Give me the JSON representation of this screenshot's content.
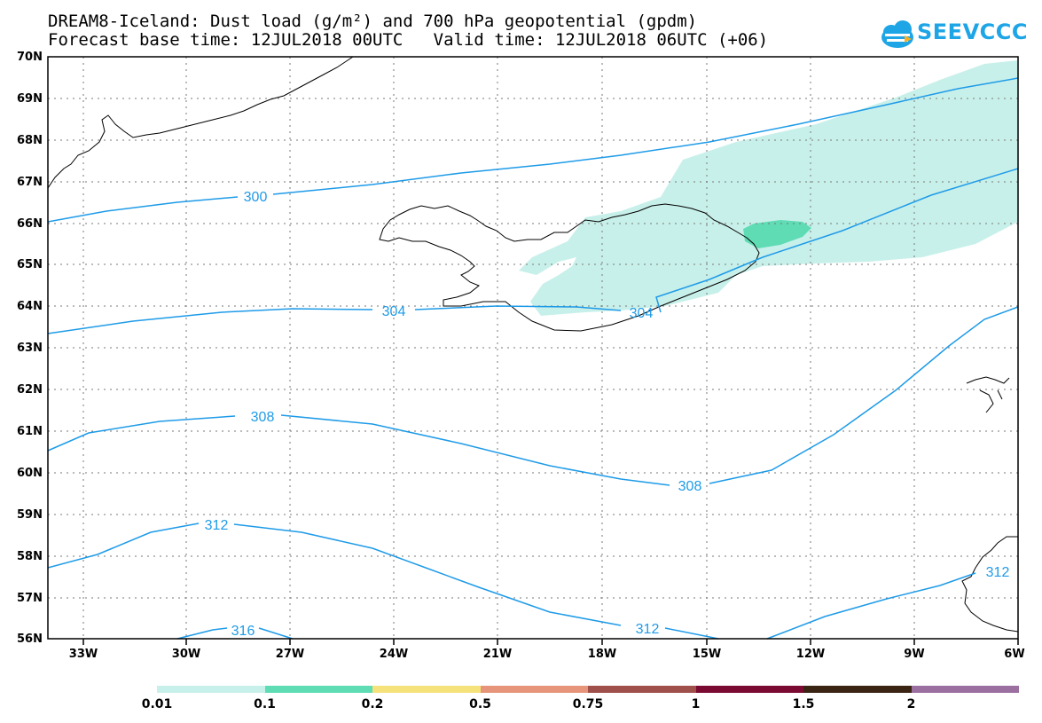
{
  "header": {
    "line1": "DREAM8-Iceland: Dust load (g/m²) and 700 hPa geopotential (gpdm)",
    "line2": "Forecast base time: 12JUL2018 00UTC   Valid time: 12JUL2018 06UTC (+06)",
    "logo_text": "SEEVCCC"
  },
  "map": {
    "lat_labels": [
      "70N",
      "69N",
      "68N",
      "67N",
      "66N",
      "65N",
      "64N",
      "63N",
      "62N",
      "61N",
      "60N",
      "59N",
      "58N",
      "57N",
      "56N"
    ],
    "lon_labels": [
      "33W",
      "30W",
      "27W",
      "24W",
      "21W",
      "18W",
      "15W",
      "12W",
      "9W",
      "6W"
    ],
    "contour_labels": [
      "300",
      "304",
      "304",
      "308",
      "308",
      "312",
      "312",
      "312",
      "316"
    ],
    "contour_color": "#1e9be8",
    "dust_low_color": "#c8f0ea",
    "dust_mid_color": "#5fdcb4"
  },
  "colorbar": {
    "labels": [
      "0.01",
      "0.1",
      "0.2",
      "0.5",
      "0.75",
      "1",
      "1.5",
      "2"
    ],
    "colors": [
      "#c8f0ea",
      "#5fdcb4",
      "#f5e27a",
      "#e6957a",
      "#a0504a",
      "#7a0a32",
      "#3a2414",
      "#9b6fa0"
    ]
  }
}
